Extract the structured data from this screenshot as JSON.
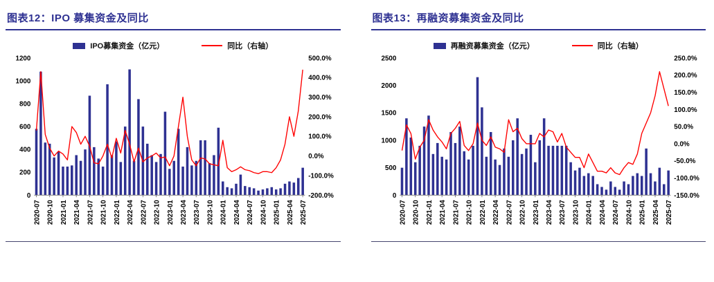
{
  "charts": [
    {
      "title": "图表12：IPO 募集资金及同比",
      "legend": {
        "bar": "IPO募集资金（亿元）",
        "line": "同比（右轴）"
      }
    },
    {
      "title": "图表13：再融资募集资金及同比",
      "legend": {
        "bar": "再融资募集资金（亿元）",
        "line": "同比（右轴）"
      }
    }
  ],
  "chart_data": [
    {
      "type": "bar",
      "title": "图表12：IPO 募集资金及同比",
      "x": [
        "2020-07",
        "2020-08",
        "2020-09",
        "2020-10",
        "2020-11",
        "2020-12",
        "2021-01",
        "2021-02",
        "2021-03",
        "2021-04",
        "2021-05",
        "2021-06",
        "2021-07",
        "2021-08",
        "2021-09",
        "2021-10",
        "2021-11",
        "2021-12",
        "2022-01",
        "2022-02",
        "2022-03",
        "2022-04",
        "2022-05",
        "2022-06",
        "2022-07",
        "2022-08",
        "2022-09",
        "2022-10",
        "2022-11",
        "2022-12",
        "2023-01",
        "2023-02",
        "2023-03",
        "2023-04",
        "2023-05",
        "2023-06",
        "2023-07",
        "2023-08",
        "2023-09",
        "2023-10",
        "2023-11",
        "2023-12",
        "2024-01",
        "2024-02",
        "2024-03",
        "2024-04",
        "2024-05",
        "2024-06",
        "2024-07",
        "2024-08",
        "2024-09",
        "2024-10",
        "2024-11",
        "2024-12",
        "2025-01",
        "2025-02",
        "2025-03",
        "2025-04",
        "2025-05",
        "2025-06",
        "2025-07"
      ],
      "tick_every": 3,
      "bar_series": {
        "name": "IPO募集资金（亿元）",
        "values": [
          580,
          1080,
          460,
          450,
          330,
          380,
          250,
          250,
          260,
          350,
          300,
          400,
          870,
          420,
          320,
          250,
          970,
          350,
          470,
          290,
          600,
          1100,
          300,
          840,
          600,
          450,
          350,
          290,
          360,
          730,
          230,
          300,
          580,
          250,
          420,
          260,
          300,
          480,
          480,
          280,
          350,
          590,
          120,
          70,
          60,
          100,
          180,
          80,
          70,
          60,
          40,
          50,
          60,
          70,
          50,
          60,
          100,
          120,
          110,
          150,
          240
        ]
      },
      "line_series": {
        "name": "同比（右轴）",
        "values": [
          130,
          430,
          110,
          40,
          0,
          25,
          10,
          -20,
          150,
          120,
          60,
          100,
          50,
          -35,
          -40,
          0,
          60,
          -10,
          90,
          15,
          130,
          60,
          -30,
          40,
          -30,
          -10,
          0,
          15,
          -10,
          -5,
          -50,
          0,
          150,
          300,
          100,
          -20,
          -50,
          -10,
          -15,
          -40,
          -45,
          -50,
          80,
          -60,
          -80,
          -70,
          -55,
          -70,
          -75,
          -85,
          -90,
          -80,
          -80,
          -85,
          -60,
          -20,
          60,
          200,
          100,
          230,
          440
        ]
      },
      "left_axis": {
        "min": 0,
        "max": 1200,
        "step": 200
      },
      "right_axis": {
        "min": -200,
        "max": 500,
        "step": 100,
        "format": "percent"
      },
      "grid": "off",
      "legend_position": "top",
      "colors": {
        "bar": "#2E3192",
        "line": "#FF0000"
      }
    },
    {
      "type": "bar",
      "title": "图表13：再融资募集资金及同比",
      "x": [
        "2020-07",
        "2020-08",
        "2020-09",
        "2020-10",
        "2020-11",
        "2020-12",
        "2021-01",
        "2021-02",
        "2021-03",
        "2021-04",
        "2021-05",
        "2021-06",
        "2021-07",
        "2021-08",
        "2021-09",
        "2021-10",
        "2021-11",
        "2021-12",
        "2022-01",
        "2022-02",
        "2022-03",
        "2022-04",
        "2022-05",
        "2022-06",
        "2022-07",
        "2022-08",
        "2022-09",
        "2022-10",
        "2022-11",
        "2022-12",
        "2023-01",
        "2023-02",
        "2023-03",
        "2023-04",
        "2023-05",
        "2023-06",
        "2023-07",
        "2023-08",
        "2023-09",
        "2023-10",
        "2023-11",
        "2023-12",
        "2024-01",
        "2024-02",
        "2024-03",
        "2024-04",
        "2024-05",
        "2024-06",
        "2024-07",
        "2024-08",
        "2024-09",
        "2024-10",
        "2024-11",
        "2024-12",
        "2025-01",
        "2025-02",
        "2025-03",
        "2025-04",
        "2025-05",
        "2025-06",
        "2025-07"
      ],
      "tick_every": 3,
      "bar_series": {
        "name": "再融资募集资金（亿元）",
        "values": [
          500,
          1400,
          1050,
          600,
          900,
          1250,
          1450,
          750,
          950,
          700,
          650,
          1150,
          950,
          1250,
          800,
          650,
          900,
          2150,
          1600,
          700,
          1150,
          650,
          550,
          850,
          700,
          1000,
          1400,
          750,
          850,
          1100,
          600,
          1000,
          1400,
          900,
          900,
          900,
          900,
          900,
          600,
          450,
          500,
          350,
          400,
          350,
          200,
          150,
          100,
          250,
          150,
          100,
          250,
          200,
          350,
          400,
          350,
          850,
          400,
          250,
          500,
          200,
          450
        ]
      },
      "line_series": {
        "name": "同比（右轴）",
        "values": [
          -20,
          55,
          30,
          -45,
          -10,
          10,
          70,
          40,
          20,
          5,
          -15,
          30,
          45,
          65,
          -5,
          -20,
          0,
          60,
          10,
          -5,
          20,
          -10,
          -15,
          -25,
          70,
          35,
          45,
          15,
          0,
          0,
          0,
          30,
          20,
          40,
          35,
          5,
          30,
          -10,
          -25,
          -40,
          -40,
          -70,
          -30,
          -55,
          -80,
          -80,
          -85,
          -70,
          -85,
          -90,
          -70,
          -55,
          -60,
          -30,
          30,
          60,
          90,
          140,
          210,
          160,
          110
        ]
      },
      "left_axis": {
        "min": 0,
        "max": 2500,
        "step": 500
      },
      "right_axis": {
        "min": -150,
        "max": 250,
        "step": 50,
        "format": "percent"
      },
      "grid": "off",
      "legend_position": "top",
      "colors": {
        "bar": "#2E3192",
        "line": "#FF0000"
      }
    }
  ]
}
